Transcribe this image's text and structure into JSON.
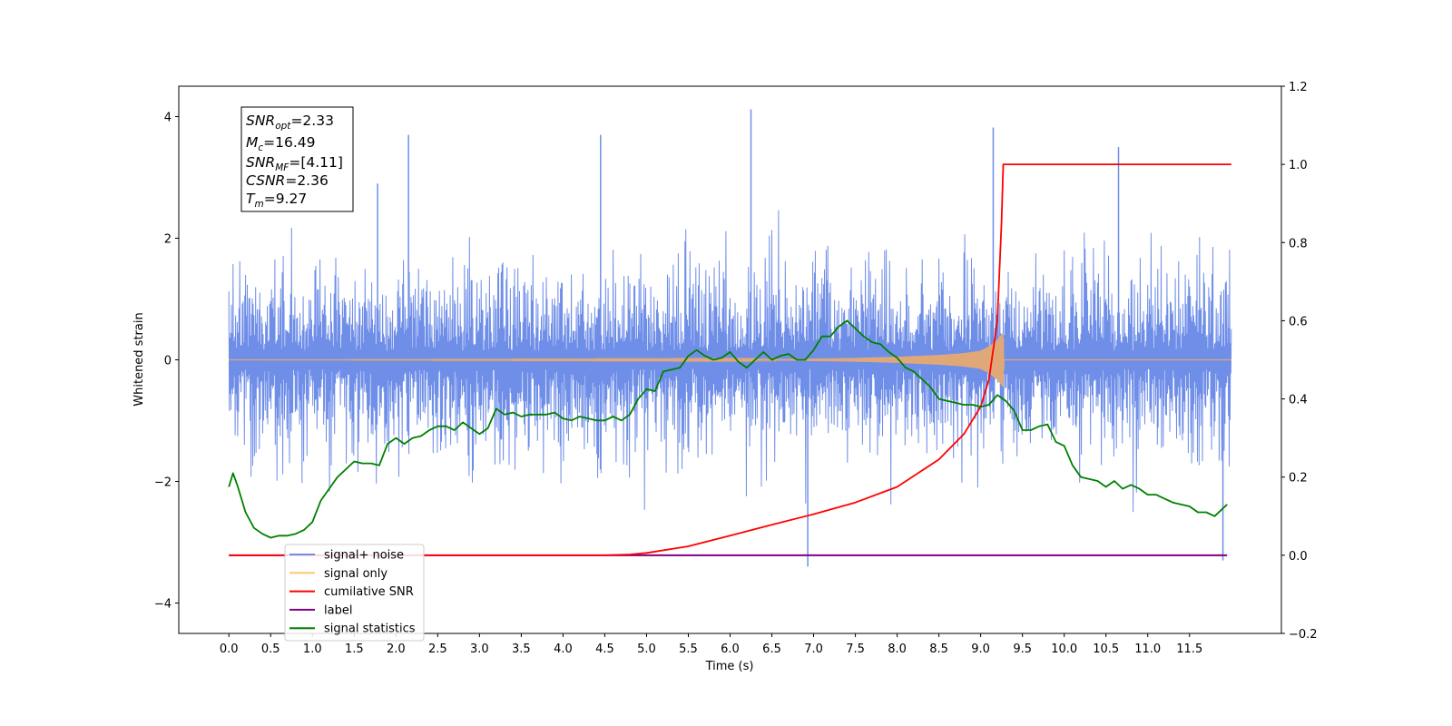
{
  "chart_data": {
    "type": "line",
    "xlabel": "Time (s)",
    "ylabel": "Whitened strain",
    "xlim": [
      -0.6,
      12.6
    ],
    "ylim": [
      -4.5,
      4.5
    ],
    "y2lim": [
      -0.2,
      1.2
    ],
    "x_ticks": [
      "0.0",
      "0.5",
      "1.0",
      "1.5",
      "2.0",
      "2.5",
      "3.0",
      "3.5",
      "4.0",
      "4.5",
      "5.0",
      "5.5",
      "6.0",
      "6.5",
      "7.0",
      "7.5",
      "8.0",
      "8.5",
      "9.0",
      "9.5",
      "10.0",
      "10.5",
      "11.0",
      "11.5"
    ],
    "y_ticks": [
      "4",
      "2",
      "0",
      "−2",
      "−4"
    ],
    "y2_ticks": [
      "1.2",
      "1.0",
      "0.8",
      "0.6",
      "0.4",
      "0.2",
      "0.0",
      "−0.2"
    ],
    "annotation": {
      "snr_opt": {
        "base": "SNR",
        "sub": "opt",
        "value": "=2.33"
      },
      "mc": {
        "base": "M",
        "sub": "c",
        "value": "=16.49"
      },
      "snr_mf": {
        "base": "SNR",
        "sub": "MF",
        "value": "=[4.11]"
      },
      "csnr": {
        "base": "CSNR",
        "sub": "",
        "value": "=2.36"
      },
      "tm": {
        "base": "T",
        "sub": "m",
        "value": "=9.27"
      }
    },
    "legend": [
      {
        "label": "signal+ noise",
        "color": "#6f8ee8"
      },
      {
        "label": "signal only",
        "color": "#ffc56e"
      },
      {
        "label": "cumilative SNR",
        "color": "#ff0000"
      },
      {
        "label": "label",
        "color": "#800080"
      },
      {
        "label": "signal statistics",
        "color": "#008000"
      }
    ],
    "legend_placement": "lower-left",
    "series": [
      {
        "name": "signal+ noise",
        "axis": "left",
        "color": "#6f8ee8",
        "x_range": [
          0.0,
          12.0
        ],
        "description_mean": 0,
        "envelope_typical": [
          -2.3,
          2.3
        ],
        "extremes": [
          [
            6.25,
            4.12
          ],
          [
            9.15,
            3.82
          ],
          [
            10.65,
            3.5
          ],
          [
            1.78,
            2.9
          ],
          [
            2.15,
            3.7
          ],
          [
            4.45,
            3.7
          ],
          [
            6.93,
            -3.4
          ],
          [
            11.9,
            -3.3
          ]
        ]
      },
      {
        "name": "signal only",
        "axis": "left",
        "color": "#e0a878",
        "x": [
          0.0,
          6.5,
          7.5,
          8.0,
          8.5,
          8.8,
          9.0,
          9.1,
          9.2,
          9.27,
          9.28,
          12.0
        ],
        "amplitude": [
          0.0,
          0.01,
          0.03,
          0.05,
          0.08,
          0.11,
          0.15,
          0.22,
          0.33,
          0.45,
          0.0,
          0.0
        ]
      },
      {
        "name": "cumilative SNR",
        "axis": "right",
        "color": "#ff0000",
        "x": [
          0.0,
          4.5,
          4.8,
          5.0,
          5.5,
          6.0,
          6.5,
          7.0,
          7.5,
          8.0,
          8.5,
          8.8,
          9.0,
          9.1,
          9.2,
          9.25,
          9.27,
          12.0
        ],
        "y": [
          0.0,
          0.0,
          0.002,
          0.006,
          0.023,
          0.05,
          0.078,
          0.105,
          0.135,
          0.175,
          0.245,
          0.31,
          0.38,
          0.45,
          0.6,
          0.85,
          1.0,
          1.0
        ]
      },
      {
        "name": "label",
        "axis": "right",
        "color": "#800080",
        "x": [
          0.0,
          11.95
        ],
        "y": [
          0.0,
          0.0
        ]
      },
      {
        "name": "signal statistics",
        "axis": "right",
        "color": "#008000",
        "x": [
          0.0,
          0.05,
          0.1,
          0.2,
          0.3,
          0.4,
          0.5,
          0.6,
          0.7,
          0.8,
          0.9,
          1.0,
          1.1,
          1.2,
          1.3,
          1.4,
          1.5,
          1.6,
          1.7,
          1.8,
          1.9,
          2.0,
          2.1,
          2.2,
          2.3,
          2.4,
          2.5,
          2.6,
          2.7,
          2.8,
          2.9,
          3.0,
          3.1,
          3.2,
          3.3,
          3.4,
          3.5,
          3.6,
          3.7,
          3.8,
          3.9,
          4.0,
          4.1,
          4.2,
          4.3,
          4.4,
          4.5,
          4.6,
          4.7,
          4.8,
          4.9,
          5.0,
          5.1,
          5.2,
          5.3,
          5.4,
          5.5,
          5.6,
          5.7,
          5.8,
          5.9,
          6.0,
          6.1,
          6.2,
          6.3,
          6.4,
          6.5,
          6.6,
          6.7,
          6.8,
          6.9,
          7.0,
          7.1,
          7.2,
          7.3,
          7.4,
          7.5,
          7.6,
          7.7,
          7.8,
          7.9,
          8.0,
          8.1,
          8.2,
          8.3,
          8.4,
          8.5,
          8.6,
          8.7,
          8.8,
          8.9,
          9.0,
          9.1,
          9.2,
          9.3,
          9.4,
          9.5,
          9.6,
          9.7,
          9.8,
          9.9,
          10.0,
          10.1,
          10.2,
          10.3,
          10.4,
          10.5,
          10.6,
          10.7,
          10.8,
          10.9,
          11.0,
          11.1,
          11.2,
          11.3,
          11.4,
          11.5,
          11.6,
          11.7,
          11.8,
          11.9,
          11.95
        ],
        "y": [
          0.175,
          0.21,
          0.18,
          0.11,
          0.07,
          0.055,
          0.045,
          0.05,
          0.05,
          0.055,
          0.065,
          0.085,
          0.14,
          0.17,
          0.2,
          0.22,
          0.24,
          0.235,
          0.235,
          0.23,
          0.285,
          0.3,
          0.285,
          0.3,
          0.305,
          0.32,
          0.33,
          0.33,
          0.32,
          0.34,
          0.325,
          0.31,
          0.325,
          0.375,
          0.36,
          0.365,
          0.355,
          0.36,
          0.36,
          0.36,
          0.365,
          0.35,
          0.345,
          0.355,
          0.35,
          0.345,
          0.345,
          0.355,
          0.345,
          0.36,
          0.4,
          0.425,
          0.42,
          0.47,
          0.475,
          0.48,
          0.51,
          0.525,
          0.51,
          0.5,
          0.505,
          0.52,
          0.495,
          0.48,
          0.5,
          0.52,
          0.5,
          0.51,
          0.515,
          0.5,
          0.5,
          0.525,
          0.56,
          0.56,
          0.585,
          0.6,
          0.58,
          0.56,
          0.545,
          0.54,
          0.52,
          0.505,
          0.48,
          0.47,
          0.45,
          0.43,
          0.4,
          0.395,
          0.39,
          0.385,
          0.385,
          0.38,
          0.385,
          0.41,
          0.395,
          0.37,
          0.32,
          0.32,
          0.33,
          0.335,
          0.29,
          0.28,
          0.23,
          0.2,
          0.195,
          0.19,
          0.175,
          0.19,
          0.17,
          0.18,
          0.17,
          0.155,
          0.155,
          0.145,
          0.135,
          0.13,
          0.125,
          0.11,
          0.11,
          0.1,
          0.12,
          0.13
        ]
      }
    ]
  }
}
